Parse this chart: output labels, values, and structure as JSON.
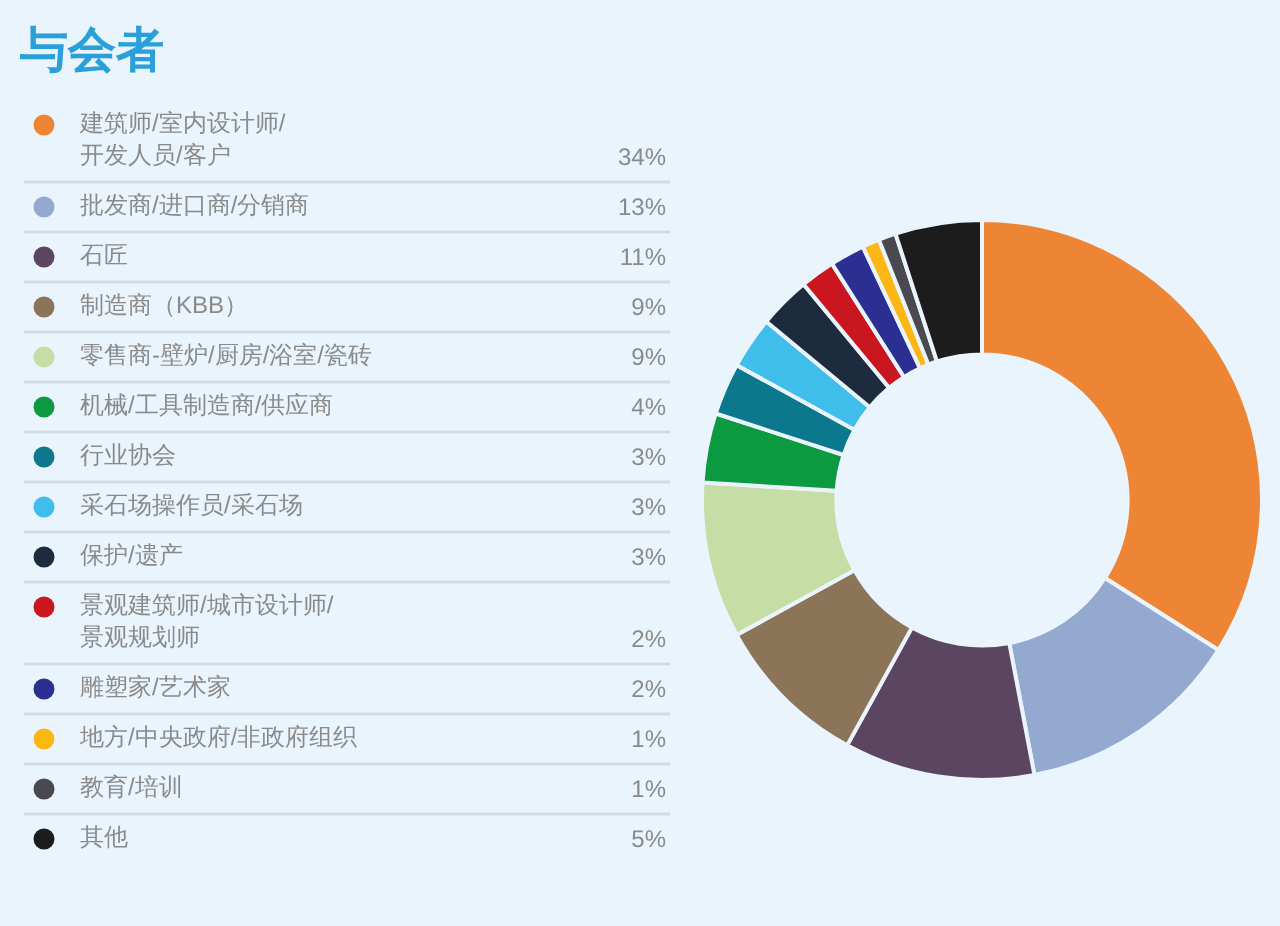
{
  "chart_data": {
    "type": "donut",
    "title": "与会者",
    "categories": [
      "建筑师/室内设计师/开发人员/客户",
      "批发商/进口商/分销商",
      "石匠",
      "制造商（KBB）",
      "零售商-壁炉/厨房/浴室/瓷砖",
      "机械/工具制造商/供应商",
      "行业协会",
      "采石场操作员/采石场",
      "保护/遗产",
      "景观建筑师/城市设计师/景观规划师",
      "雕塑家/艺术家",
      "地方/中央政府/非政府组织",
      "教育/培训",
      "其他"
    ],
    "values": [
      34,
      13,
      11,
      9,
      9,
      4,
      3,
      3,
      3,
      2,
      2,
      1,
      1,
      5
    ],
    "value_labels": [
      "34%",
      "13%",
      "11%",
      "9%",
      "9%",
      "4%",
      "3%",
      "3%",
      "3%",
      "2%",
      "2%",
      "1%",
      "1%",
      "5%"
    ],
    "colors": [
      "#ee8535",
      "#93a9cf",
      "#5b4561",
      "#8b7457",
      "#c6dda6",
      "#0b9a3f",
      "#0b788d",
      "#3fbdeb",
      "#1d2b3f",
      "#c9161f",
      "#2b2f91",
      "#fdb714",
      "#49494f",
      "#1c1c1c"
    ],
    "legend": "left"
  }
}
